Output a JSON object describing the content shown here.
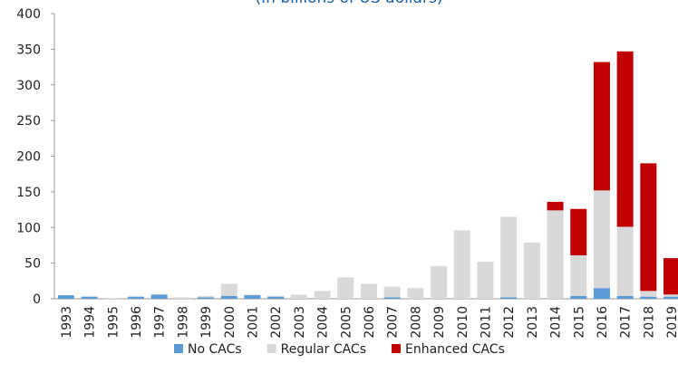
{
  "chart_data": {
    "type": "stacked_bar",
    "subtitle": "(In billions of US dollars)",
    "categories": [
      "1993",
      "1994",
      "1995",
      "1996",
      "1997",
      "1998",
      "1999",
      "2000",
      "2001",
      "2002",
      "2003",
      "2004",
      "2005",
      "2006",
      "2007",
      "2008",
      "2009",
      "2010",
      "2011",
      "2012",
      "2013",
      "2014",
      "2015",
      "2016",
      "2017",
      "2018",
      "2019"
    ],
    "series": [
      {
        "name": "No CACs",
        "color": "#5b9bd5",
        "values": [
          5,
          3,
          0,
          3,
          6,
          0,
          2,
          4,
          5,
          3,
          0,
          0,
          0,
          0,
          2,
          0,
          0,
          0,
          0,
          2,
          0,
          0,
          4,
          15,
          4,
          3,
          3
        ]
      },
      {
        "name": "Regular CACs",
        "color": "#d9d9d9",
        "values": [
          0,
          0,
          1,
          0,
          0,
          2,
          2,
          17,
          1,
          1,
          6,
          11,
          30,
          21,
          15,
          15,
          46,
          96,
          52,
          113,
          79,
          124,
          57,
          137,
          97,
          8,
          3
        ]
      },
      {
        "name": "Enhanced CACs",
        "color": "#c00000",
        "values": [
          0,
          0,
          0,
          0,
          0,
          0,
          0,
          0,
          0,
          0,
          0,
          0,
          0,
          0,
          0,
          0,
          0,
          0,
          0,
          0,
          0,
          12,
          65,
          180,
          246,
          179,
          51
        ]
      }
    ],
    "ylim": [
      0,
      400
    ],
    "yticks": [
      0,
      50,
      100,
      150,
      200,
      250,
      300,
      350,
      400
    ],
    "legend": "bottom"
  }
}
